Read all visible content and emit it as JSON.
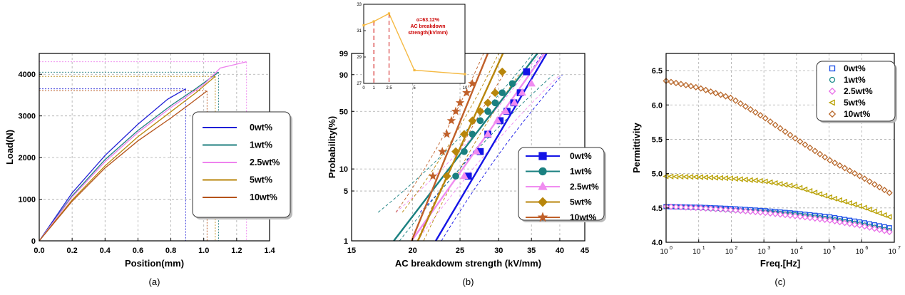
{
  "chart_data": [
    {
      "type": "line",
      "panel_label": "(a)",
      "xlabel": "Position(mm)",
      "ylabel": "Load(N)",
      "xlim": [
        0,
        1.4
      ],
      "ylim": [
        0,
        4500
      ],
      "xticks": [
        "0.0",
        "0.2",
        "0.4",
        "0.6",
        "0.8",
        "1.0",
        "1.2",
        "1.4"
      ],
      "yticks": [
        "0",
        "1000",
        "2000",
        "3000",
        "4000"
      ],
      "grid": true,
      "legend_position": "right",
      "series": [
        {
          "name": "0wt%",
          "color": "#1f1fd6",
          "x": [
            0,
            0.2,
            0.4,
            0.6,
            0.78,
            0.89
          ],
          "y": [
            0,
            1150,
            2050,
            2800,
            3400,
            3650
          ],
          "break_x": 0.89
        },
        {
          "name": "1wt%",
          "color": "#1f7f7f",
          "x": [
            0,
            0.2,
            0.4,
            0.6,
            0.8,
            0.95,
            1.09
          ],
          "y": [
            0,
            1080,
            1950,
            2650,
            3250,
            3650,
            4050
          ],
          "break_x": 1.09
        },
        {
          "name": "2.5wt%",
          "color": "#ee82ee",
          "x": [
            0,
            0.2,
            0.4,
            0.6,
            0.8,
            1.0,
            1.1,
            1.26
          ],
          "y": [
            0,
            1050,
            1900,
            2600,
            3200,
            3750,
            4150,
            4300
          ],
          "break_x": 1.26
        },
        {
          "name": "5wt%",
          "color": "#b8860b",
          "x": [
            0,
            0.2,
            0.4,
            0.6,
            0.8,
            0.95,
            1.07
          ],
          "y": [
            0,
            980,
            1800,
            2500,
            3100,
            3550,
            3950
          ],
          "break_x": 1.07
        },
        {
          "name": "10wt%",
          "color": "#b5531a",
          "x": [
            0,
            0.2,
            0.4,
            0.6,
            0.8,
            0.92,
            1.02
          ],
          "y": [
            0,
            950,
            1750,
            2400,
            2950,
            3300,
            3600
          ],
          "break_x": 1.02
        }
      ]
    },
    {
      "type": "scatter",
      "panel_label": "(b)",
      "xlabel": "AC breakdowm strength (kV/mm)",
      "ylabel": "Probability(%)",
      "xscale": "log",
      "xlim": [
        15,
        45
      ],
      "xticks": [
        "15",
        "20",
        "25",
        "30",
        "35",
        "40",
        "45"
      ],
      "yscale": "weibull",
      "yticks": [
        "1",
        "5",
        "10",
        "50",
        "90",
        "99"
      ],
      "grid": true,
      "legend_position": "bottom-right",
      "series": [
        {
          "name": "0wt%",
          "color": "#1414e6",
          "marker": "square",
          "x": [
            26,
            27.5,
            28.5,
            30.2,
            31.2,
            32.2,
            33.2,
            34.2
          ],
          "y": [
            8,
            17,
            28,
            40,
            50,
            60,
            72,
            92
          ],
          "fit_x": [
            22.3,
            37.6
          ],
          "fit_y": [
            1,
            99
          ]
        },
        {
          "name": "1wt%",
          "color": "#1a8080",
          "marker": "circle",
          "x": [
            24.5,
            25.5,
            26.5,
            27.5,
            28.5,
            29.5,
            30.5,
            32
          ],
          "y": [
            8,
            17,
            28,
            40,
            50,
            60,
            72,
            82
          ],
          "fit_x": [
            18.3,
            36
          ],
          "fit_y": [
            1,
            99
          ]
        },
        {
          "name": "2.5wt%",
          "color": "#f08cf0",
          "marker": "triangle",
          "x": [
            25.5,
            27,
            28.5,
            29.8,
            31,
            32.3,
            33.5,
            35
          ],
          "y": [
            8,
            17,
            28,
            40,
            50,
            60,
            72,
            82
          ],
          "fit_x": [
            19.9,
            37.2
          ],
          "fit_y": [
            1,
            99
          ]
        },
        {
          "name": "5wt%",
          "color": "#b8860b",
          "marker": "diamond",
          "x": [
            23.5,
            24.5,
            25.5,
            26.5,
            27.5,
            28.5,
            29.5,
            30.5
          ],
          "y": [
            8,
            17,
            28,
            40,
            50,
            60,
            72,
            92
          ],
          "fit_x": [
            20.5,
            30.6
          ],
          "fit_y": [
            1,
            99
          ]
        },
        {
          "name": "10wt%",
          "color": "#c0602a",
          "marker": "star",
          "x": [
            22,
            23,
            23.5,
            24,
            24.5,
            25,
            25.8,
            26.5
          ],
          "y": [
            8,
            17,
            28,
            40,
            50,
            60,
            72,
            82
          ],
          "fit_x": [
            19.9,
            28.5
          ],
          "fit_y": [
            1,
            99
          ]
        }
      ],
      "inset": {
        "type": "line",
        "x": [
          0,
          1,
          2.5,
          5,
          10
        ],
        "y": [
          31.4,
          31.7,
          32.3,
          28.0,
          27.7
        ],
        "xticks": [
          "0",
          "1",
          "2.5",
          "5",
          "10"
        ],
        "yticks": [
          "27",
          "29",
          "31",
          "33"
        ],
        "ylim": [
          27,
          33
        ],
        "color": "#f5b942",
        "annotation_lines": [
          "α=63.12%",
          "AC breakdown",
          "strength(kV/mm)"
        ]
      }
    },
    {
      "type": "scatter",
      "panel_label": "(c)",
      "xlabel": "Freq.[Hz]",
      "ylabel": "Permittivity",
      "xscale": "log",
      "xlim": [
        1,
        10000000
      ],
      "ylim": [
        4.0,
        6.75
      ],
      "xtick_bases": [
        "10",
        "10",
        "10",
        "10",
        "10",
        "10",
        "10",
        "10"
      ],
      "xtick_exponents": [
        "0",
        "1",
        "2",
        "3",
        "4",
        "5",
        "6",
        "7"
      ],
      "yticks": [
        "4.0",
        "4.5",
        "5.0",
        "5.5",
        "6.0",
        "6.5"
      ],
      "grid": true,
      "legend_position": "top-right",
      "series": [
        {
          "name": "0wt%",
          "color": "#1a4ee6",
          "marker": "square",
          "logf": [
            0,
            1,
            2,
            3,
            4,
            5,
            6,
            6.85
          ],
          "y": [
            4.52,
            4.51,
            4.49,
            4.46,
            4.42,
            4.37,
            4.29,
            4.21
          ]
        },
        {
          "name": "1wt%",
          "color": "#1a8a8a",
          "marker": "circle",
          "logf": [
            0,
            1,
            2,
            3,
            4,
            5,
            6,
            6.85
          ],
          "y": [
            4.52,
            4.5,
            4.47,
            4.44,
            4.4,
            4.34,
            4.26,
            4.17
          ]
        },
        {
          "name": "2.5wt%",
          "color": "#e86fe8",
          "marker": "diamond",
          "logf": [
            0,
            1,
            2,
            3,
            4,
            5,
            6,
            6.85
          ],
          "y": [
            4.52,
            4.5,
            4.47,
            4.43,
            4.38,
            4.32,
            4.24,
            4.15
          ]
        },
        {
          "name": "5wt%",
          "color": "#b8a000",
          "marker": "triangle-left",
          "logf": [
            0,
            1,
            2,
            3,
            4,
            5,
            6,
            6.85
          ],
          "y": [
            4.96,
            4.95,
            4.93,
            4.89,
            4.81,
            4.66,
            4.52,
            4.37
          ]
        },
        {
          "name": "10wt%",
          "color": "#b8672a",
          "marker": "diamond",
          "logf": [
            0,
            1,
            2,
            3,
            4,
            5,
            6,
            6.85
          ],
          "y": [
            6.35,
            6.25,
            6.1,
            5.82,
            5.5,
            5.2,
            4.95,
            4.72
          ]
        }
      ]
    }
  ]
}
